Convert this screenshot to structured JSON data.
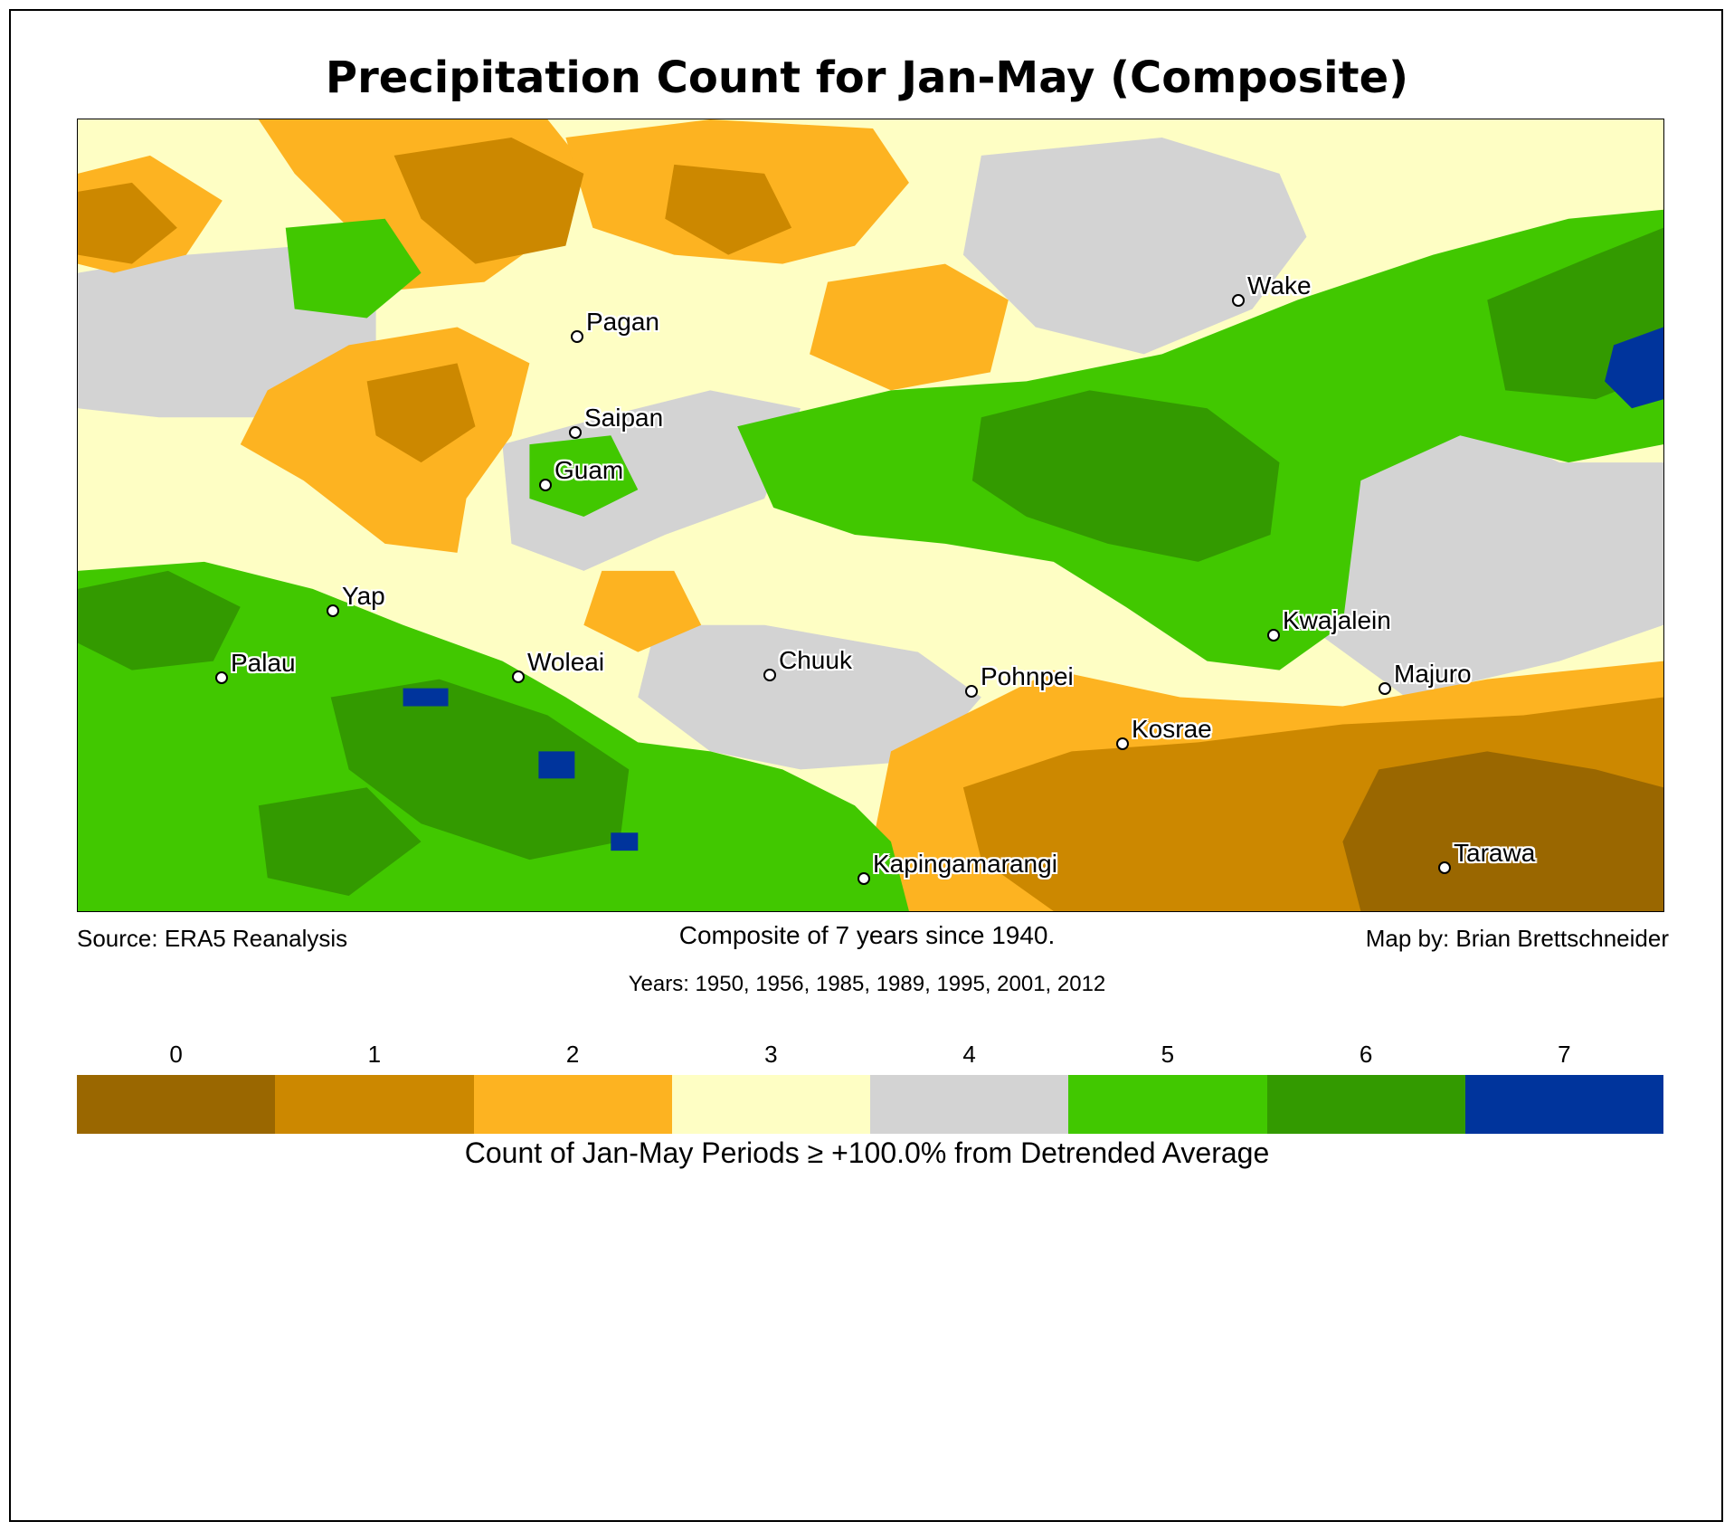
{
  "title": "Precipitation Count for Jan-May (Composite)",
  "footer": {
    "source": "Source: ERA5 Reanalysis",
    "composite": "Composite of 7 years since 1940.",
    "credit": "Map by: Brian Brettschneider",
    "years": "Years: 1950, 1956, 1985, 1989, 1995, 2001, 2012"
  },
  "legend": {
    "label": "Count of Jan-May Periods ≥ +100.0% from Detrended Average",
    "classes": [
      {
        "value": "0",
        "color": "#9a6700"
      },
      {
        "value": "1",
        "color": "#cc8800"
      },
      {
        "value": "2",
        "color": "#fdb321"
      },
      {
        "value": "3",
        "color": "#fefec4"
      },
      {
        "value": "4",
        "color": "#d3d3d3"
      },
      {
        "value": "5",
        "color": "#41c800"
      },
      {
        "value": "6",
        "color": "#339a00"
      },
      {
        "value": "7",
        "color": "#00349c"
      }
    ]
  },
  "places": [
    {
      "name": "Wake"
    },
    {
      "name": "Pagan"
    },
    {
      "name": "Saipan"
    },
    {
      "name": "Guam"
    },
    {
      "name": "Yap"
    },
    {
      "name": "Palau"
    },
    {
      "name": "Woleai"
    },
    {
      "name": "Chuuk"
    },
    {
      "name": "Pohnpei"
    },
    {
      "name": "Kosrae"
    },
    {
      "name": "Kwajalein"
    },
    {
      "name": "Majuro"
    },
    {
      "name": "Kapingamarangi"
    },
    {
      "name": "Tarawa"
    }
  ]
}
